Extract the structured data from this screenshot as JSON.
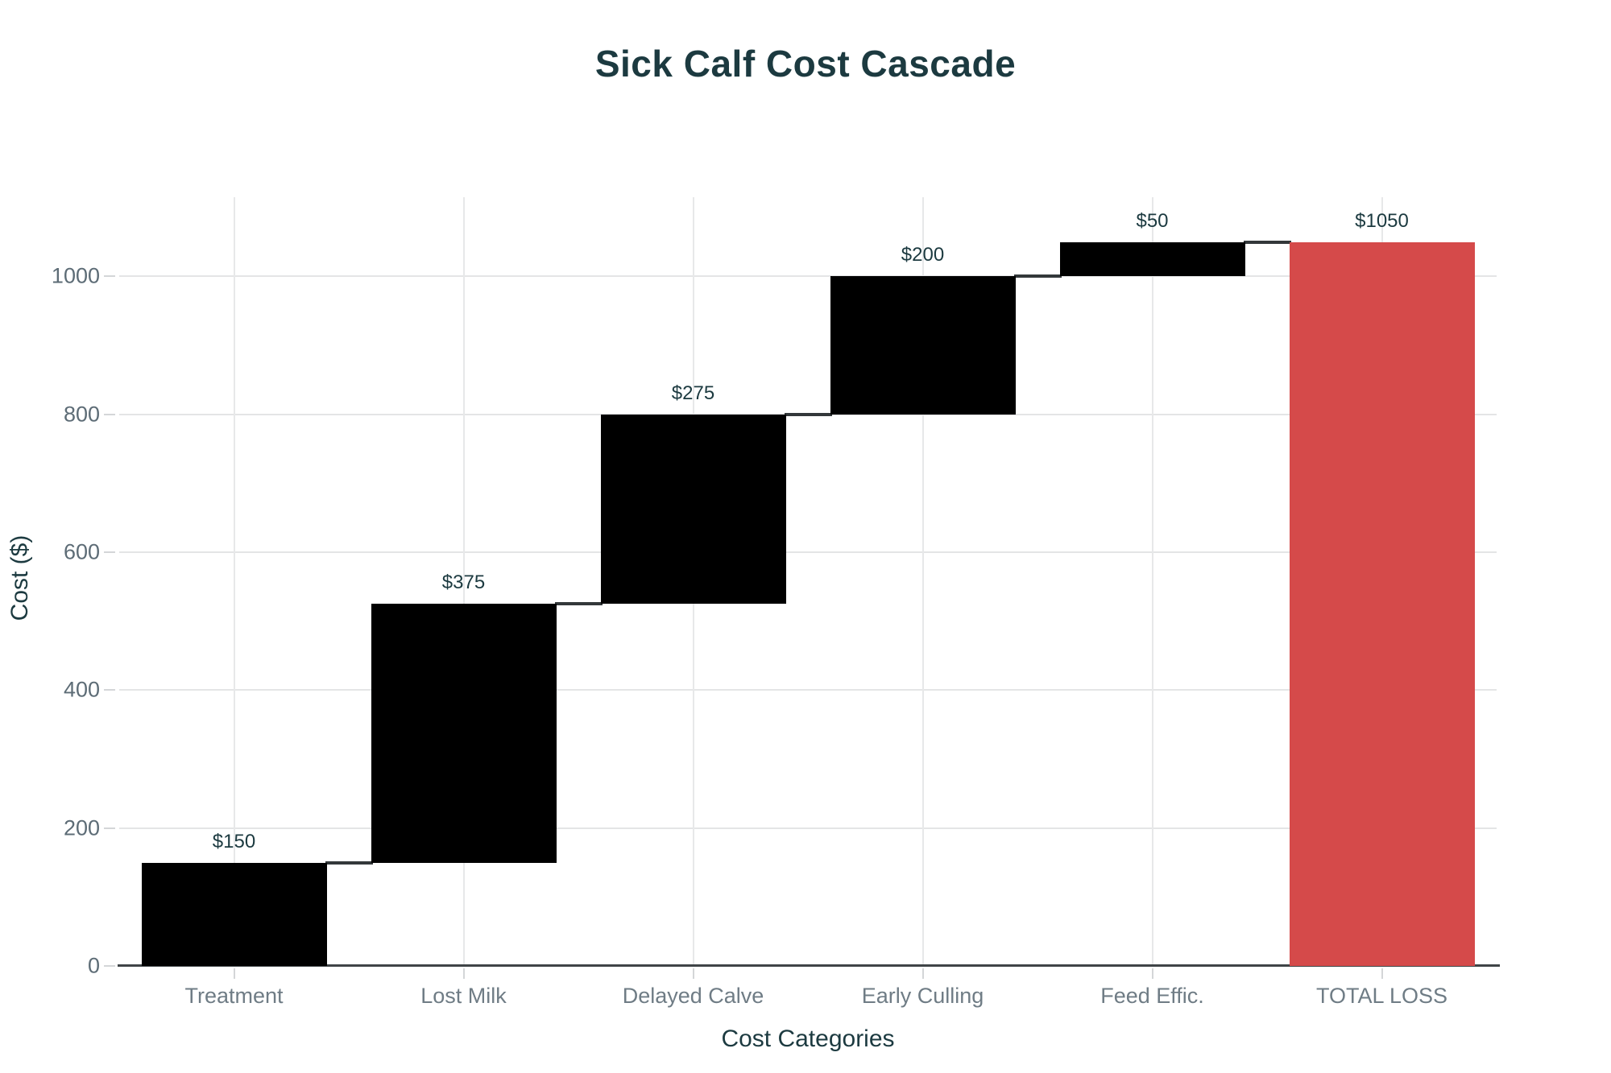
{
  "title": "Sick Calf Cost Cascade",
  "colors": {
    "title_text": "#1c3a40",
    "increment_bar": "#000000",
    "total_bar": "#d54a4a",
    "tick_label": "#5d6c76",
    "category_label": "#6f7c85",
    "gridline": "#e4e5e6",
    "axis_line": "#3f4447",
    "connector": "#33383a",
    "value_label": "#1c3a40",
    "background": "#ffffff"
  },
  "chart_data": {
    "type": "bar",
    "subtype": "waterfall",
    "title": "Sick Calf Cost Cascade",
    "xlabel": "Cost Categories",
    "ylabel": "Cost ($)",
    "categories": [
      "Treatment",
      "Lost Milk",
      "Delayed Calve",
      "Early Culling",
      "Feed Effic.",
      "TOTAL LOSS"
    ],
    "values": [
      150,
      375,
      275,
      200,
      50,
      1050
    ],
    "value_labels": [
      "$150",
      "$375",
      "$275",
      "$200",
      "$50",
      "$1050"
    ],
    "bar_types": [
      "relative",
      "relative",
      "relative",
      "relative",
      "relative",
      "total"
    ],
    "cumulative_start": [
      0,
      150,
      525,
      800,
      1000,
      0
    ],
    "cumulative_end": [
      150,
      525,
      800,
      1000,
      1050,
      1050
    ],
    "yticks": [
      0,
      200,
      400,
      600,
      800,
      1000
    ],
    "ylim": [
      0,
      1115
    ],
    "grid": true,
    "legend": "none"
  }
}
